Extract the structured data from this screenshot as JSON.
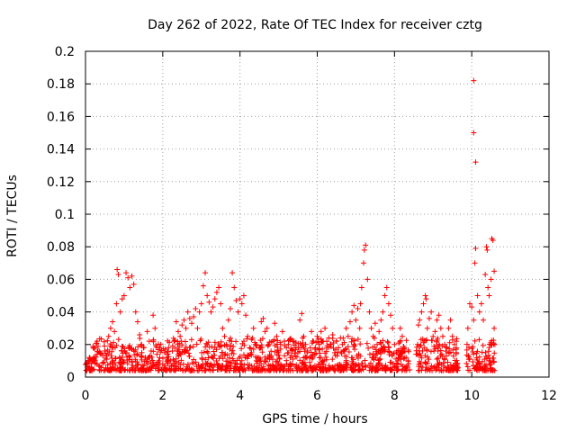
{
  "chart_data": {
    "type": "scatter",
    "title": "Day 262 of 2022, Rate Of TEC Index for receiver cztg",
    "xlabel": "GPS time / hours",
    "ylabel": "ROTI / TECUs",
    "xlim": [
      0,
      12
    ],
    "ylim": [
      0,
      0.2
    ],
    "x_ticks": [
      0,
      2,
      4,
      6,
      8,
      10,
      12
    ],
    "y_ticks": [
      0,
      0.02,
      0.04,
      0.06,
      0.08,
      0.1,
      0.12,
      0.14,
      0.16,
      0.18,
      0.2
    ],
    "x_tick_labels": [
      "0",
      "2",
      "4",
      "6",
      "8",
      "10",
      "12"
    ],
    "y_tick_labels": [
      "0",
      "0.02",
      "0.04",
      "0.06",
      "0.08",
      "0.1",
      "0.12",
      "0.14",
      "0.16",
      "0.18",
      "0.2"
    ],
    "grid": true,
    "marker": "+",
    "series": [
      {
        "name": "ROTI",
        "color": "#ff0000",
        "points": [
          [
            0.05,
            0.008
          ],
          [
            0.1,
            0.012
          ],
          [
            0.15,
            0.006
          ],
          [
            0.2,
            0.018
          ],
          [
            0.25,
            0.01
          ],
          [
            0.3,
            0.022
          ],
          [
            0.35,
            0.007
          ],
          [
            0.4,
            0.014
          ],
          [
            0.45,
            0.009
          ],
          [
            0.5,
            0.016
          ],
          [
            0.55,
            0.011
          ],
          [
            0.6,
            0.025
          ],
          [
            0.65,
            0.03
          ],
          [
            0.7,
            0.034
          ],
          [
            0.75,
            0.028
          ],
          [
            0.8,
            0.045
          ],
          [
            0.82,
            0.066
          ],
          [
            0.85,
            0.063
          ],
          [
            0.9,
            0.04
          ],
          [
            0.95,
            0.048
          ],
          [
            1.0,
            0.05
          ],
          [
            1.05,
            0.064
          ],
          [
            1.1,
            0.061
          ],
          [
            1.15,
            0.055
          ],
          [
            1.2,
            0.062
          ],
          [
            1.25,
            0.057
          ],
          [
            1.3,
            0.04
          ],
          [
            1.35,
            0.034
          ],
          [
            1.4,
            0.026
          ],
          [
            1.45,
            0.02
          ],
          [
            1.5,
            0.018
          ],
          [
            1.55,
            0.012
          ],
          [
            1.6,
            0.028
          ],
          [
            1.65,
            0.022
          ],
          [
            1.7,
            0.016
          ],
          [
            1.75,
            0.038
          ],
          [
            1.8,
            0.03
          ],
          [
            1.85,
            0.014
          ],
          [
            1.9,
            0.01
          ],
          [
            1.95,
            0.02
          ],
          [
            2.0,
            0.008
          ],
          [
            2.05,
            0.015
          ],
          [
            2.1,
            0.012
          ],
          [
            2.15,
            0.018
          ],
          [
            2.2,
            0.01
          ],
          [
            2.25,
            0.016
          ],
          [
            2.3,
            0.022
          ],
          [
            2.35,
            0.034
          ],
          [
            2.4,
            0.028
          ],
          [
            2.45,
            0.025
          ],
          [
            2.5,
            0.032
          ],
          [
            2.55,
            0.035
          ],
          [
            2.6,
            0.03
          ],
          [
            2.65,
            0.04
          ],
          [
            2.7,
            0.036
          ],
          [
            2.75,
            0.033
          ],
          [
            2.8,
            0.037
          ],
          [
            2.85,
            0.042
          ],
          [
            2.9,
            0.03
          ],
          [
            2.95,
            0.04
          ],
          [
            3.0,
            0.045
          ],
          [
            3.05,
            0.056
          ],
          [
            3.1,
            0.064
          ],
          [
            3.15,
            0.05
          ],
          [
            3.2,
            0.046
          ],
          [
            3.25,
            0.04
          ],
          [
            3.3,
            0.043
          ],
          [
            3.35,
            0.048
          ],
          [
            3.4,
            0.052
          ],
          [
            3.45,
            0.055
          ],
          [
            3.5,
            0.045
          ],
          [
            3.55,
            0.03
          ],
          [
            3.6,
            0.025
          ],
          [
            3.65,
            0.02
          ],
          [
            3.7,
            0.035
          ],
          [
            3.75,
            0.042
          ],
          [
            3.8,
            0.064
          ],
          [
            3.85,
            0.055
          ],
          [
            3.9,
            0.047
          ],
          [
            3.95,
            0.04
          ],
          [
            4.0,
            0.048
          ],
          [
            4.05,
            0.045
          ],
          [
            4.1,
            0.05
          ],
          [
            4.15,
            0.038
          ],
          [
            4.2,
            0.025
          ],
          [
            4.25,
            0.018
          ],
          [
            4.3,
            0.015
          ],
          [
            4.35,
            0.03
          ],
          [
            4.4,
            0.02
          ],
          [
            4.45,
            0.012
          ],
          [
            4.5,
            0.018
          ],
          [
            4.55,
            0.034
          ],
          [
            4.6,
            0.036
          ],
          [
            4.65,
            0.028
          ],
          [
            4.7,
            0.03
          ],
          [
            4.75,
            0.02
          ],
          [
            4.8,
            0.012
          ],
          [
            4.85,
            0.022
          ],
          [
            4.9,
            0.033
          ],
          [
            4.95,
            0.025
          ],
          [
            5.0,
            0.015
          ],
          [
            5.05,
            0.02
          ],
          [
            5.1,
            0.028
          ],
          [
            5.15,
            0.022
          ],
          [
            5.2,
            0.018
          ],
          [
            5.25,
            0.015
          ],
          [
            5.3,
            0.012
          ],
          [
            5.35,
            0.016
          ],
          [
            5.4,
            0.022
          ],
          [
            5.45,
            0.018
          ],
          [
            5.5,
            0.015
          ],
          [
            5.55,
            0.035
          ],
          [
            5.6,
            0.039
          ],
          [
            5.65,
            0.025
          ],
          [
            5.7,
            0.02
          ],
          [
            5.75,
            0.016
          ],
          [
            5.8,
            0.012
          ],
          [
            5.85,
            0.028
          ],
          [
            5.9,
            0.022
          ],
          [
            5.95,
            0.018
          ],
          [
            6.0,
            0.025
          ],
          [
            6.05,
            0.02
          ],
          [
            6.1,
            0.028
          ],
          [
            6.15,
            0.022
          ],
          [
            6.2,
            0.03
          ],
          [
            6.25,
            0.018
          ],
          [
            6.3,
            0.024
          ],
          [
            6.35,
            0.02
          ],
          [
            6.4,
            0.026
          ],
          [
            6.45,
            0.015
          ],
          [
            6.5,
            0.022
          ],
          [
            6.55,
            0.018
          ],
          [
            6.6,
            0.024
          ],
          [
            6.65,
            0.02
          ],
          [
            6.7,
            0.016
          ],
          [
            6.75,
            0.03
          ],
          [
            6.8,
            0.025
          ],
          [
            6.85,
            0.034
          ],
          [
            6.9,
            0.04
          ],
          [
            6.95,
            0.044
          ],
          [
            7.0,
            0.035
          ],
          [
            7.05,
            0.042
          ],
          [
            7.1,
            0.03
          ],
          [
            7.12,
            0.045
          ],
          [
            7.15,
            0.055
          ],
          [
            7.2,
            0.07
          ],
          [
            7.22,
            0.078
          ],
          [
            7.25,
            0.081
          ],
          [
            7.3,
            0.06
          ],
          [
            7.35,
            0.04
          ],
          [
            7.4,
            0.03
          ],
          [
            7.45,
            0.025
          ],
          [
            7.5,
            0.033
          ],
          [
            7.55,
            0.02
          ],
          [
            7.6,
            0.028
          ],
          [
            7.65,
            0.035
          ],
          [
            7.7,
            0.04
          ],
          [
            7.75,
            0.05
          ],
          [
            7.8,
            0.055
          ],
          [
            7.85,
            0.045
          ],
          [
            7.9,
            0.038
          ],
          [
            7.95,
            0.03
          ],
          [
            8.0,
            0.02
          ],
          [
            8.05,
            0.015
          ],
          [
            8.1,
            0.012
          ],
          [
            8.15,
            0.03
          ],
          [
            8.2,
            0.025
          ],
          [
            8.25,
            0.018
          ],
          [
            8.3,
            0.012
          ],
          [
            8.35,
            0.01
          ],
          [
            8.6,
            0.02
          ],
          [
            8.62,
            0.032
          ],
          [
            8.65,
            0.035
          ],
          [
            8.7,
            0.04
          ],
          [
            8.75,
            0.045
          ],
          [
            8.8,
            0.05
          ],
          [
            8.82,
            0.048
          ],
          [
            8.85,
            0.03
          ],
          [
            8.9,
            0.036
          ],
          [
            8.95,
            0.04
          ],
          [
            9.0,
            0.025
          ],
          [
            9.05,
            0.028
          ],
          [
            9.1,
            0.035
          ],
          [
            9.15,
            0.038
          ],
          [
            9.2,
            0.03
          ],
          [
            9.25,
            0.025
          ],
          [
            9.3,
            0.02
          ],
          [
            9.35,
            0.018
          ],
          [
            9.4,
            0.03
          ],
          [
            9.45,
            0.035
          ],
          [
            9.5,
            0.025
          ],
          [
            9.55,
            0.02
          ],
          [
            9.6,
            0.015
          ],
          [
            9.9,
            0.03
          ],
          [
            9.95,
            0.045
          ],
          [
            10.0,
            0.043
          ],
          [
            10.05,
            0.035
          ],
          [
            10.08,
            0.07
          ],
          [
            10.1,
            0.079
          ],
          [
            10.1,
            0.132
          ],
          [
            10.05,
            0.15
          ],
          [
            10.05,
            0.182
          ],
          [
            10.15,
            0.05
          ],
          [
            10.2,
            0.04
          ],
          [
            10.25,
            0.045
          ],
          [
            10.3,
            0.035
          ],
          [
            10.35,
            0.063
          ],
          [
            10.38,
            0.08
          ],
          [
            10.4,
            0.078
          ],
          [
            10.42,
            0.055
          ],
          [
            10.45,
            0.05
          ],
          [
            10.5,
            0.06
          ],
          [
            10.52,
            0.085
          ],
          [
            10.55,
            0.084
          ],
          [
            10.58,
            0.065
          ],
          [
            10.58,
            0.03
          ],
          [
            10.6,
            0.02
          ]
        ]
      }
    ]
  }
}
